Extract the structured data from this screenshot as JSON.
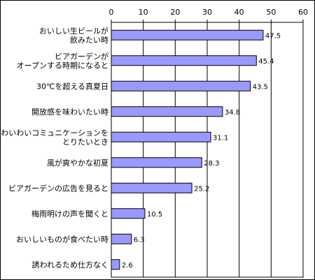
{
  "chart_data": {
    "type": "bar",
    "orientation": "horizontal",
    "x_ticks": [
      "0",
      "10",
      "20",
      "30",
      "40",
      "50",
      "60"
    ],
    "xlim": [
      0,
      60
    ],
    "grid": true,
    "bar_color": "#9999ff",
    "categories": [
      [
        "おいしい生ビールが",
        "飲みたい時"
      ],
      [
        "ビアガーデンが",
        "オープンする時期になると"
      ],
      [
        "30℃を超える真夏日"
      ],
      [
        "開放感を味わいたい時"
      ],
      [
        "わいわいコミュニケーションを",
        "とりたいとき"
      ],
      [
        "風が爽やかな初夏"
      ],
      [
        "ビアガーデンの広告を見ると"
      ],
      [
        "梅雨明けの声を聞くと"
      ],
      [
        "おいしいものが食べたい時"
      ],
      [
        "誘われるため仕方なく"
      ]
    ],
    "values": [
      47.5,
      45.4,
      43.5,
      34.8,
      31.1,
      28.3,
      25.2,
      10.5,
      6.3,
      2.6
    ],
    "value_labels": [
      "47.5",
      "45.4",
      "43.5",
      "34.8",
      "31.1",
      "28.3",
      "25.2",
      "10.5",
      "6.3",
      "2.6"
    ]
  }
}
